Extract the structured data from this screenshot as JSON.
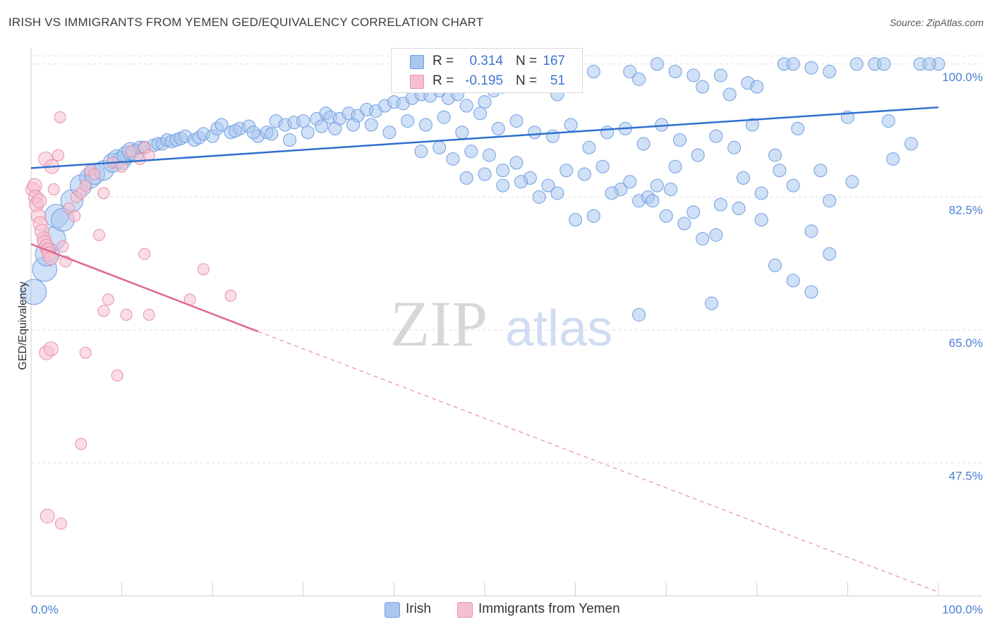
{
  "title": "IRISH VS IMMIGRANTS FROM YEMEN GED/EQUIVALENCY CORRELATION CHART",
  "source": "Source: ZipAtlas.com",
  "watermark": {
    "zip": "ZIP",
    "atlas": "atlas"
  },
  "legend": {
    "rows": [
      {
        "r_label": "R =",
        "r_value": "0.314",
        "n_label": "N =",
        "n_value": "167",
        "color": "#a9c6ef",
        "border": "#6f9ee0"
      },
      {
        "r_label": "R =",
        "r_value": "-0.195",
        "n_label": "N =",
        "n_value": "51",
        "color": "#f6c0d0",
        "border": "#e890ab"
      }
    ]
  },
  "bottom_legend": [
    {
      "label": "Irish",
      "color": "#a9c6ef",
      "border": "#6f9ee0"
    },
    {
      "label": "Immigrants from Yemen",
      "color": "#f6c0d0",
      "border": "#e890ab"
    }
  ],
  "chart_data": {
    "type": "scatter",
    "title": "IRISH VS IMMIGRANTS FROM YEMEN GED/EQUIVALENCY CORRELATION CHART",
    "ylabel": "GED/Equivalency",
    "xlabel": "",
    "xlim": [
      0,
      100
    ],
    "ylim": [
      30,
      101
    ],
    "y_ticks": [
      {
        "value": 100,
        "label": "100.0%"
      },
      {
        "value": 82.5,
        "label": "82.5%"
      },
      {
        "value": 65,
        "label": "65.0%"
      },
      {
        "value": 47.5,
        "label": "47.5%"
      }
    ],
    "x_tick_labels": [
      {
        "value": 0,
        "label": "0.0%"
      },
      {
        "value": 100,
        "label": "100.0%"
      }
    ],
    "grid": true,
    "series": [
      {
        "name": "Irish",
        "color": "#6f9ee0",
        "fill": "#a9c6ef",
        "trend": {
          "x": [
            0,
            100
          ],
          "y": [
            86.3,
            94.3
          ],
          "style": "solid"
        },
        "points": [
          [
            0.3,
            70.0
          ],
          [
            1.5,
            73.0
          ],
          [
            1.8,
            75.0
          ],
          [
            2.5,
            77.0
          ],
          [
            2.8,
            80.0
          ],
          [
            3.5,
            79.5
          ],
          [
            4.5,
            82.0
          ],
          [
            5.5,
            84.0
          ],
          [
            6.5,
            85.0
          ],
          [
            7.0,
            85.5
          ],
          [
            8.0,
            86.0
          ],
          [
            9.0,
            87.0
          ],
          [
            9.5,
            87.5
          ],
          [
            10.0,
            87.3
          ],
          [
            10.5,
            88.0
          ],
          [
            11.0,
            88.5
          ],
          [
            11.5,
            88.3
          ],
          [
            12.0,
            89.0
          ],
          [
            12.5,
            89.0
          ],
          [
            13.5,
            89.3
          ],
          [
            14.0,
            89.5
          ],
          [
            14.5,
            89.5
          ],
          [
            15.0,
            90.0
          ],
          [
            15.5,
            89.8
          ],
          [
            16.0,
            90.0
          ],
          [
            16.5,
            90.2
          ],
          [
            17.0,
            90.5
          ],
          [
            18.0,
            90.0
          ],
          [
            18.5,
            90.3
          ],
          [
            19.0,
            90.8
          ],
          [
            20.0,
            90.5
          ],
          [
            20.5,
            91.5
          ],
          [
            21.0,
            92.0
          ],
          [
            22.0,
            91.0
          ],
          [
            23.0,
            91.5
          ],
          [
            24.0,
            91.8
          ],
          [
            25.0,
            90.5
          ],
          [
            26.0,
            91.0
          ],
          [
            27.0,
            92.5
          ],
          [
            28.0,
            92.0
          ],
          [
            29.0,
            92.3
          ],
          [
            30.0,
            92.5
          ],
          [
            31.5,
            92.8
          ],
          [
            32.5,
            93.5
          ],
          [
            33.0,
            93.0
          ],
          [
            34.0,
            92.8
          ],
          [
            35.0,
            93.5
          ],
          [
            36.0,
            93.2
          ],
          [
            37.0,
            94.0
          ],
          [
            38.0,
            93.8
          ],
          [
            39.0,
            94.5
          ],
          [
            40.0,
            95.0
          ],
          [
            41.0,
            94.8
          ],
          [
            42.0,
            95.5
          ],
          [
            43.0,
            96.0
          ],
          [
            44.0,
            95.8
          ],
          [
            45.0,
            96.5
          ],
          [
            46.0,
            95.5
          ],
          [
            47.0,
            96.0
          ],
          [
            48.0,
            94.5
          ],
          [
            49.0,
            97.5
          ],
          [
            50.0,
            95.0
          ],
          [
            51.0,
            96.5
          ],
          [
            52.0,
            97.0
          ],
          [
            52.5,
            100.0
          ],
          [
            55.0,
            97.5
          ],
          [
            58.0,
            96.0
          ],
          [
            60.0,
            100.0
          ],
          [
            62.0,
            99.0
          ],
          [
            66.0,
            99.0
          ],
          [
            67.0,
            98.0
          ],
          [
            69.0,
            100.0
          ],
          [
            71.0,
            99.0
          ],
          [
            73.0,
            98.5
          ],
          [
            74.0,
            97.0
          ],
          [
            76.0,
            98.5
          ],
          [
            77.0,
            96.0
          ],
          [
            79.0,
            97.5
          ],
          [
            80.0,
            97.0
          ],
          [
            83.0,
            100.0
          ],
          [
            84.0,
            100.0
          ],
          [
            86.0,
            99.5
          ],
          [
            88.0,
            99.0
          ],
          [
            91.0,
            100.0
          ],
          [
            93.0,
            100.0
          ],
          [
            94.0,
            100.0
          ],
          [
            98.0,
            100.0
          ],
          [
            100.0,
            100.0
          ],
          [
            22.5,
            91.2
          ],
          [
            24.5,
            91.0
          ],
          [
            26.5,
            90.8
          ],
          [
            28.5,
            90.0
          ],
          [
            30.5,
            91.0
          ],
          [
            32.0,
            91.8
          ],
          [
            33.5,
            91.5
          ],
          [
            35.5,
            92.0
          ],
          [
            37.5,
            92.0
          ],
          [
            39.5,
            91.0
          ],
          [
            41.5,
            92.5
          ],
          [
            43.5,
            92.0
          ],
          [
            45.5,
            93.0
          ],
          [
            47.5,
            91.0
          ],
          [
            49.5,
            93.5
          ],
          [
            51.5,
            91.5
          ],
          [
            53.5,
            92.5
          ],
          [
            55.5,
            91.0
          ],
          [
            57.5,
            90.5
          ],
          [
            59.5,
            92.0
          ],
          [
            61.5,
            89.0
          ],
          [
            63.5,
            91.0
          ],
          [
            65.5,
            91.5
          ],
          [
            67.5,
            89.5
          ],
          [
            69.5,
            92.0
          ],
          [
            71.5,
            90.0
          ],
          [
            73.5,
            88.0
          ],
          [
            75.5,
            90.5
          ],
          [
            77.5,
            89.0
          ],
          [
            79.5,
            92.0
          ],
          [
            82.0,
            88.0
          ],
          [
            84.5,
            91.5
          ],
          [
            87.0,
            86.0
          ],
          [
            90.0,
            93.0
          ],
          [
            94.5,
            92.5
          ],
          [
            99.0,
            100.0
          ],
          [
            43.0,
            88.5
          ],
          [
            45.0,
            89.0
          ],
          [
            46.5,
            87.5
          ],
          [
            48.5,
            88.5
          ],
          [
            50.5,
            88.0
          ],
          [
            52.0,
            86.0
          ],
          [
            53.5,
            87.0
          ],
          [
            55.0,
            85.0
          ],
          [
            57.0,
            84.0
          ],
          [
            59.0,
            86.0
          ],
          [
            61.0,
            85.5
          ],
          [
            63.0,
            86.5
          ],
          [
            65.0,
            83.5
          ],
          [
            67.0,
            82.0
          ],
          [
            69.0,
            84.0
          ],
          [
            71.0,
            86.5
          ],
          [
            73.0,
            80.5
          ],
          [
            75.5,
            77.5
          ],
          [
            78.0,
            81.0
          ],
          [
            80.5,
            83.0
          ],
          [
            82.5,
            86.0
          ],
          [
            84.0,
            84.0
          ],
          [
            86.0,
            78.0
          ],
          [
            88.0,
            82.0
          ],
          [
            90.5,
            84.5
          ],
          [
            95.0,
            87.5
          ],
          [
            97.0,
            89.5
          ],
          [
            48.0,
            85.0
          ],
          [
            50.0,
            85.5
          ],
          [
            52.0,
            84.0
          ],
          [
            54.0,
            84.5
          ],
          [
            56.0,
            82.5
          ],
          [
            58.0,
            83.0
          ],
          [
            60.0,
            79.5
          ],
          [
            62.0,
            80.0
          ],
          [
            64.0,
            83.0
          ],
          [
            66.0,
            84.5
          ],
          [
            68.0,
            82.5
          ],
          [
            70.0,
            80.0
          ],
          [
            72.0,
            79.0
          ],
          [
            74.0,
            77.0
          ],
          [
            76.0,
            81.5
          ],
          [
            78.5,
            85.0
          ],
          [
            80.5,
            79.5
          ],
          [
            82.0,
            73.5
          ],
          [
            84.0,
            71.5
          ],
          [
            86.0,
            70.0
          ],
          [
            88.0,
            75.0
          ],
          [
            67.0,
            67.0
          ],
          [
            75.0,
            68.5
          ],
          [
            68.5,
            82.0
          ],
          [
            70.5,
            83.5
          ]
        ]
      },
      {
        "name": "Immigrants from Yemen",
        "color": "#e890ab",
        "fill": "#f6c0d0",
        "trend": {
          "x": [
            0,
            25,
            100
          ],
          "y": [
            76.3,
            64.8,
            30.5
          ],
          "style": "solid-then-dashed"
        },
        "points": [
          [
            0.2,
            83.5
          ],
          [
            0.4,
            84.0
          ],
          [
            0.5,
            82.5
          ],
          [
            0.6,
            81.5
          ],
          [
            0.8,
            80.0
          ],
          [
            1.0,
            79.0
          ],
          [
            1.2,
            78.0
          ],
          [
            1.4,
            77.0
          ],
          [
            1.5,
            76.5
          ],
          [
            1.7,
            76.0
          ],
          [
            1.9,
            75.5
          ],
          [
            2.0,
            75.0
          ],
          [
            2.2,
            74.5
          ],
          [
            0.9,
            82.0
          ],
          [
            1.6,
            87.5
          ],
          [
            2.3,
            86.5
          ],
          [
            3.2,
            93.0
          ],
          [
            3.0,
            88.0
          ],
          [
            2.5,
            83.5
          ],
          [
            3.5,
            76.0
          ],
          [
            3.8,
            74.0
          ],
          [
            4.2,
            81.0
          ],
          [
            4.8,
            80.0
          ],
          [
            5.0,
            82.5
          ],
          [
            5.5,
            83.0
          ],
          [
            6.0,
            84.0
          ],
          [
            6.5,
            86.0
          ],
          [
            7.0,
            85.5
          ],
          [
            7.5,
            77.5
          ],
          [
            8.0,
            83.0
          ],
          [
            9.0,
            87.0
          ],
          [
            10.0,
            86.5
          ],
          [
            11.0,
            88.5
          ],
          [
            12.0,
            87.5
          ],
          [
            12.5,
            89.0
          ],
          [
            13.0,
            88.0
          ],
          [
            8.5,
            69.0
          ],
          [
            8.0,
            67.5
          ],
          [
            10.5,
            67.0
          ],
          [
            13.0,
            67.0
          ],
          [
            12.5,
            75.0
          ],
          [
            19.0,
            73.0
          ],
          [
            17.5,
            69.0
          ],
          [
            22.0,
            69.5
          ],
          [
            1.7,
            62.0
          ],
          [
            2.2,
            62.5
          ],
          [
            6.0,
            62.0
          ],
          [
            9.5,
            59.0
          ],
          [
            5.5,
            50.0
          ],
          [
            1.8,
            40.5
          ],
          [
            3.3,
            39.5
          ]
        ]
      }
    ]
  }
}
